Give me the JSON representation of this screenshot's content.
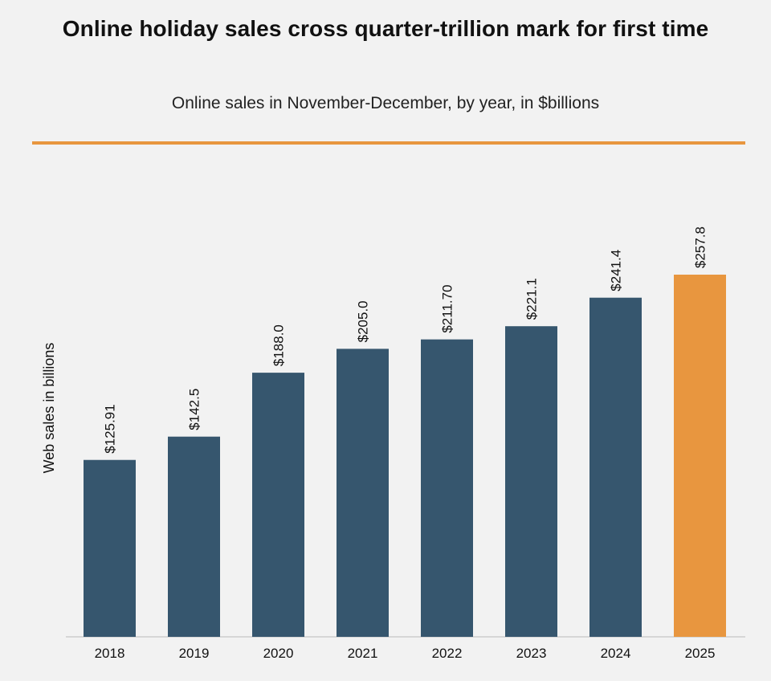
{
  "chart_data": {
    "type": "bar",
    "title": "Online holiday sales cross quarter-trillion mark for first time",
    "subtitle": "Online sales in November-December, by year, in $billions",
    "xlabel": "",
    "ylabel": "Web sales in billions",
    "categories": [
      "2018",
      "2019",
      "2020",
      "2021",
      "2022",
      "2023",
      "2024",
      "2025"
    ],
    "values": [
      125.91,
      142.5,
      188.0,
      205.0,
      211.7,
      221.1,
      241.4,
      257.8
    ],
    "value_labels": [
      "$125.91",
      "$142.5",
      "$188.0",
      "$205.0",
      "$211.70",
      "$221.1",
      "$241.4",
      "$257.8"
    ],
    "ylim": [
      0,
      260
    ],
    "highlight_index": 7,
    "colors": {
      "bar": "#36566e",
      "highlight": "#e8963f",
      "rule": "#e8963f",
      "axis": "#bbbbbb"
    }
  }
}
